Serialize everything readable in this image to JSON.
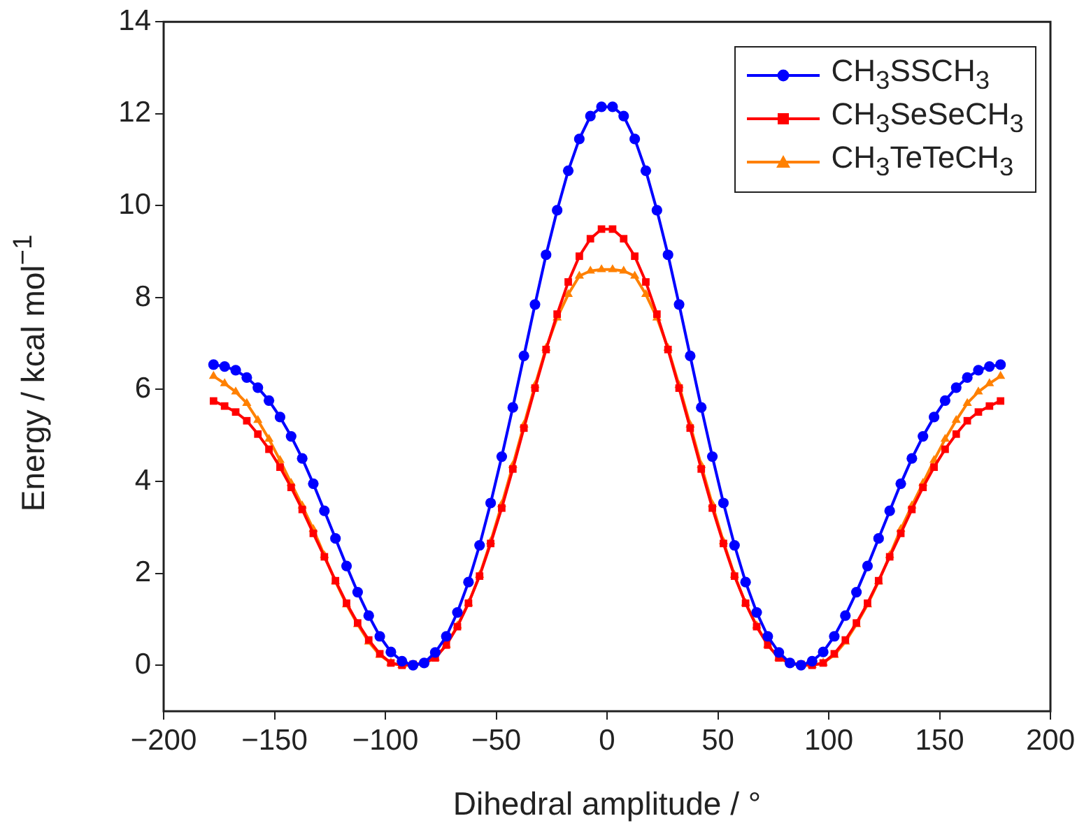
{
  "chart_data": {
    "type": "line",
    "xlabel": "Dihedral amplitude / °",
    "ylabel": "Energy / kcal mol$^{−1}$",
    "x": [
      -177.5,
      -172.5,
      -167.5,
      -162.5,
      -157.5,
      -152.5,
      -147.5,
      -142.5,
      -137.5,
      -132.5,
      -127.5,
      -122.5,
      -117.5,
      -112.5,
      -107.5,
      -102.5,
      -97.5,
      -92.5,
      -87.5,
      -82.5,
      -77.5,
      -72.5,
      -67.5,
      -62.5,
      -57.5,
      -52.5,
      -47.5,
      -42.5,
      -37.5,
      -32.5,
      -27.5,
      -22.5,
      -17.5,
      -12.5,
      -7.5,
      -2.5,
      2.5,
      7.5,
      12.5,
      17.5,
      22.5,
      27.5,
      32.5,
      37.5,
      42.5,
      47.5,
      52.5,
      57.5,
      62.5,
      67.5,
      72.5,
      77.5,
      82.5,
      87.5,
      92.5,
      97.5,
      102.5,
      107.5,
      112.5,
      117.5,
      122.5,
      127.5,
      132.5,
      137.5,
      142.5,
      147.5,
      152.5,
      157.5,
      162.5,
      167.5,
      172.5,
      177.5
    ],
    "series": [
      {
        "name": "CH$_{3}$SSCH$_{3}$",
        "color": "#0000ff",
        "marker": "circle",
        "values": [
          6.54,
          6.5,
          6.42,
          6.26,
          6.04,
          5.76,
          5.4,
          4.98,
          4.5,
          3.95,
          3.36,
          2.76,
          2.16,
          1.59,
          1.08,
          0.63,
          0.29,
          0.09,
          0.0,
          0.05,
          0.28,
          0.63,
          1.15,
          1.81,
          2.61,
          3.53,
          4.54,
          5.61,
          6.73,
          7.85,
          8.93,
          9.9,
          10.76,
          11.45,
          11.95,
          12.15,
          12.15,
          11.95,
          11.45,
          10.76,
          9.9,
          8.93,
          7.85,
          6.73,
          5.61,
          4.54,
          3.53,
          2.61,
          1.81,
          1.15,
          0.63,
          0.28,
          0.05,
          0.0,
          0.09,
          0.29,
          0.63,
          1.08,
          1.59,
          2.16,
          2.76,
          3.36,
          3.95,
          4.5,
          4.98,
          5.4,
          5.76,
          6.04,
          6.26,
          6.42,
          6.5,
          6.54
        ]
      },
      {
        "name": "CH$_{3}$SeSeCH$_{3}$",
        "color": "#ff0000",
        "marker": "square",
        "values": [
          5.75,
          5.64,
          5.51,
          5.32,
          5.03,
          4.7,
          4.31,
          3.87,
          3.39,
          2.87,
          2.36,
          1.84,
          1.35,
          0.92,
          0.55,
          0.25,
          0.05,
          0.0,
          0.02,
          0.05,
          0.16,
          0.44,
          0.84,
          1.35,
          1.94,
          2.65,
          3.42,
          4.27,
          5.16,
          6.03,
          6.87,
          7.64,
          8.34,
          8.9,
          9.28,
          9.49,
          9.49,
          9.28,
          8.9,
          8.34,
          7.64,
          6.87,
          6.03,
          5.16,
          4.27,
          3.42,
          2.65,
          1.94,
          1.35,
          0.84,
          0.44,
          0.16,
          0.05,
          0.02,
          0.0,
          0.05,
          0.25,
          0.55,
          0.92,
          1.35,
          1.84,
          2.36,
          2.87,
          3.39,
          3.87,
          4.31,
          4.7,
          5.03,
          5.32,
          5.51,
          5.64,
          5.75
        ]
      },
      {
        "name": "CH$_{3}$TeTeCH$_{3}$",
        "color": "#ff8000",
        "marker": "triangle",
        "values": [
          6.29,
          6.13,
          5.95,
          5.7,
          5.33,
          4.92,
          4.46,
          3.96,
          3.47,
          2.96,
          2.39,
          1.82,
          1.32,
          0.89,
          0.51,
          0.22,
          0.05,
          0.0,
          0.0,
          0.04,
          0.16,
          0.44,
          0.86,
          1.35,
          1.96,
          2.69,
          3.5,
          4.35,
          5.23,
          6.09,
          6.9,
          7.56,
          8.07,
          8.47,
          8.58,
          8.61,
          8.61,
          8.58,
          8.47,
          8.07,
          7.56,
          6.9,
          6.09,
          5.23,
          4.35,
          3.5,
          2.69,
          1.96,
          1.35,
          0.86,
          0.44,
          0.16,
          0.04,
          0.0,
          0.0,
          0.05,
          0.22,
          0.51,
          0.89,
          1.32,
          1.82,
          2.39,
          2.96,
          3.47,
          3.96,
          4.46,
          4.92,
          5.33,
          5.7,
          5.95,
          6.13,
          6.29
        ]
      }
    ],
    "xlim": [
      -200,
      200
    ],
    "xticks": [
      -200,
      -150,
      -100,
      -50,
      0,
      50,
      100,
      150,
      200
    ],
    "ylim": [
      -1,
      14
    ],
    "yticks": [
      0,
      2,
      4,
      6,
      8,
      10,
      12,
      14
    ],
    "grid": false,
    "legend": "top right",
    "line_style": "solid"
  }
}
